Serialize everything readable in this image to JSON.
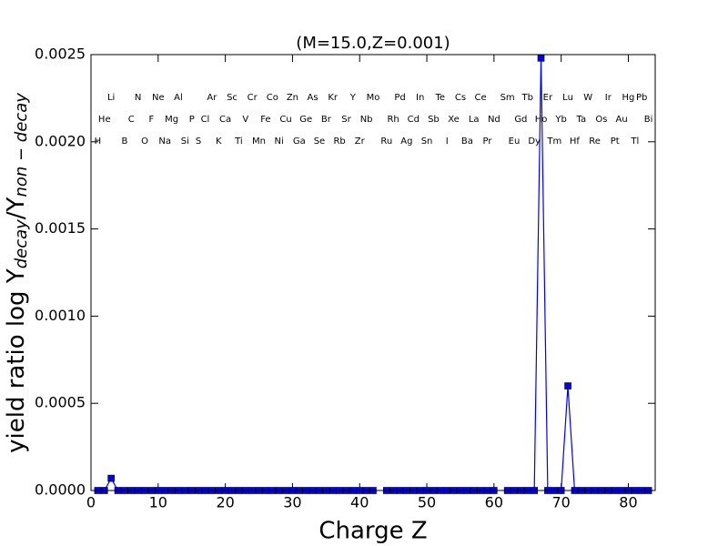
{
  "chart_data": {
    "type": "line",
    "title": "(M=15.0,Z=0.001)",
    "xlabel": "Charge Z",
    "ylabel": [
      "yield ratio log Y",
      "decay",
      "/Y",
      "non − decay"
    ],
    "x": [
      1,
      2,
      3,
      4,
      5,
      6,
      7,
      8,
      9,
      10,
      11,
      12,
      13,
      14,
      15,
      16,
      17,
      18,
      19,
      20,
      21,
      22,
      23,
      24,
      25,
      26,
      27,
      28,
      29,
      30,
      31,
      32,
      33,
      34,
      35,
      36,
      37,
      38,
      39,
      40,
      41,
      42,
      43,
      44,
      45,
      46,
      47,
      48,
      49,
      50,
      51,
      52,
      53,
      54,
      55,
      56,
      57,
      58,
      59,
      60,
      61,
      62,
      63,
      64,
      65,
      66,
      67,
      68,
      69,
      70,
      71,
      72,
      73,
      74,
      75,
      76,
      77,
      78,
      79,
      80,
      81,
      82,
      83
    ],
    "series": [
      {
        "color": "#0000ff",
        "values": [
          0,
          0,
          7e-05,
          0,
          0,
          0,
          0,
          0,
          0,
          0,
          0,
          0,
          0,
          0,
          0,
          0,
          0,
          0,
          0,
          0,
          0,
          0,
          0,
          0,
          0,
          0,
          0,
          0,
          0,
          0,
          0,
          0,
          0,
          0,
          0,
          0,
          0,
          0,
          0,
          0,
          0,
          0,
          null,
          0,
          0,
          0,
          0,
          0,
          0,
          0,
          0,
          0,
          0,
          0,
          0,
          0,
          0,
          0,
          0,
          0,
          null,
          0,
          0,
          0,
          0,
          0,
          0.00248,
          0,
          0,
          0,
          0.0006,
          0,
          0,
          0,
          0,
          0,
          0,
          0,
          0,
          0,
          0,
          0,
          0
        ]
      }
    ],
    "xlim": [
      0,
      84
    ],
    "ylim": [
      0,
      0.0025
    ],
    "xticks": [
      0,
      10,
      20,
      30,
      40,
      50,
      60,
      70,
      80
    ],
    "yticks": [
      {
        "value": 0,
        "label": "0.0000"
      },
      {
        "value": 0.0005,
        "label": "0.0005"
      },
      {
        "value": 0.001,
        "label": "0.0010"
      },
      {
        "value": 0.0015,
        "label": "0.0015"
      },
      {
        "value": 0.002,
        "label": "0.0020"
      },
      {
        "value": 0.0025,
        "label": "0.0025"
      }
    ],
    "element_rows": [
      [
        {
          "z": 3,
          "label": "Li"
        },
        {
          "z": 7,
          "label": "N"
        },
        {
          "z": 10,
          "label": "Ne"
        },
        {
          "z": 13,
          "label": "Al"
        },
        {
          "z": 18,
          "label": "Ar"
        },
        {
          "z": 21,
          "label": "Sc"
        },
        {
          "z": 24,
          "label": "Cr"
        },
        {
          "z": 27,
          "label": "Co"
        },
        {
          "z": 30,
          "label": "Zn"
        },
        {
          "z": 33,
          "label": "As"
        },
        {
          "z": 36,
          "label": "Kr"
        },
        {
          "z": 39,
          "label": "Y"
        },
        {
          "z": 42,
          "label": "Mo"
        },
        {
          "z": 46,
          "label": "Pd"
        },
        {
          "z": 49,
          "label": "In"
        },
        {
          "z": 52,
          "label": "Te"
        },
        {
          "z": 55,
          "label": "Cs"
        },
        {
          "z": 58,
          "label": "Ce"
        },
        {
          "z": 62,
          "label": "Sm"
        },
        {
          "z": 65,
          "label": "Tb"
        },
        {
          "z": 68,
          "label": "Er"
        },
        {
          "z": 71,
          "label": "Lu"
        },
        {
          "z": 74,
          "label": "W"
        },
        {
          "z": 77,
          "label": "Ir"
        },
        {
          "z": 80,
          "label": "Hg"
        },
        {
          "z": 82,
          "label": "Pb"
        }
      ],
      [
        {
          "z": 2,
          "label": "He"
        },
        {
          "z": 6,
          "label": "C"
        },
        {
          "z": 9,
          "label": "F"
        },
        {
          "z": 12,
          "label": "Mg"
        },
        {
          "z": 15,
          "label": "P"
        },
        {
          "z": 17,
          "label": "Cl"
        },
        {
          "z": 20,
          "label": "Ca"
        },
        {
          "z": 23,
          "label": "V"
        },
        {
          "z": 26,
          "label": "Fe"
        },
        {
          "z": 29,
          "label": "Cu"
        },
        {
          "z": 32,
          "label": "Ge"
        },
        {
          "z": 35,
          "label": "Br"
        },
        {
          "z": 38,
          "label": "Sr"
        },
        {
          "z": 41,
          "label": "Nb"
        },
        {
          "z": 45,
          "label": "Rh"
        },
        {
          "z": 48,
          "label": "Cd"
        },
        {
          "z": 51,
          "label": "Sb"
        },
        {
          "z": 54,
          "label": "Xe"
        },
        {
          "z": 57,
          "label": "La"
        },
        {
          "z": 60,
          "label": "Nd"
        },
        {
          "z": 64,
          "label": "Gd"
        },
        {
          "z": 67,
          "label": "Ho"
        },
        {
          "z": 70,
          "label": "Yb"
        },
        {
          "z": 73,
          "label": "Ta"
        },
        {
          "z": 76,
          "label": "Os"
        },
        {
          "z": 79,
          "label": "Au"
        },
        {
          "z": 83,
          "label": "Bi"
        }
      ],
      [
        {
          "z": 1,
          "label": "H"
        },
        {
          "z": 5,
          "label": "B"
        },
        {
          "z": 8,
          "label": "O"
        },
        {
          "z": 11,
          "label": "Na"
        },
        {
          "z": 14,
          "label": "Si"
        },
        {
          "z": 16,
          "label": "S"
        },
        {
          "z": 19,
          "label": "K"
        },
        {
          "z": 22,
          "label": "Ti"
        },
        {
          "z": 25,
          "label": "Mn"
        },
        {
          "z": 28,
          "label": "Ni"
        },
        {
          "z": 31,
          "label": "Ga"
        },
        {
          "z": 34,
          "label": "Se"
        },
        {
          "z": 37,
          "label": "Rb"
        },
        {
          "z": 40,
          "label": "Zr"
        },
        {
          "z": 44,
          "label": "Ru"
        },
        {
          "z": 47,
          "label": "Ag"
        },
        {
          "z": 50,
          "label": "Sn"
        },
        {
          "z": 53,
          "label": "I"
        },
        {
          "z": 56,
          "label": "Ba"
        },
        {
          "z": 59,
          "label": "Pr"
        },
        {
          "z": 63,
          "label": "Eu"
        },
        {
          "z": 66,
          "label": "Dy"
        },
        {
          "z": 69,
          "label": "Tm"
        },
        {
          "z": 72,
          "label": "Hf"
        },
        {
          "z": 75,
          "label": "Re"
        },
        {
          "z": 78,
          "label": "Pt"
        },
        {
          "z": 81,
          "label": "Tl"
        }
      ]
    ]
  }
}
